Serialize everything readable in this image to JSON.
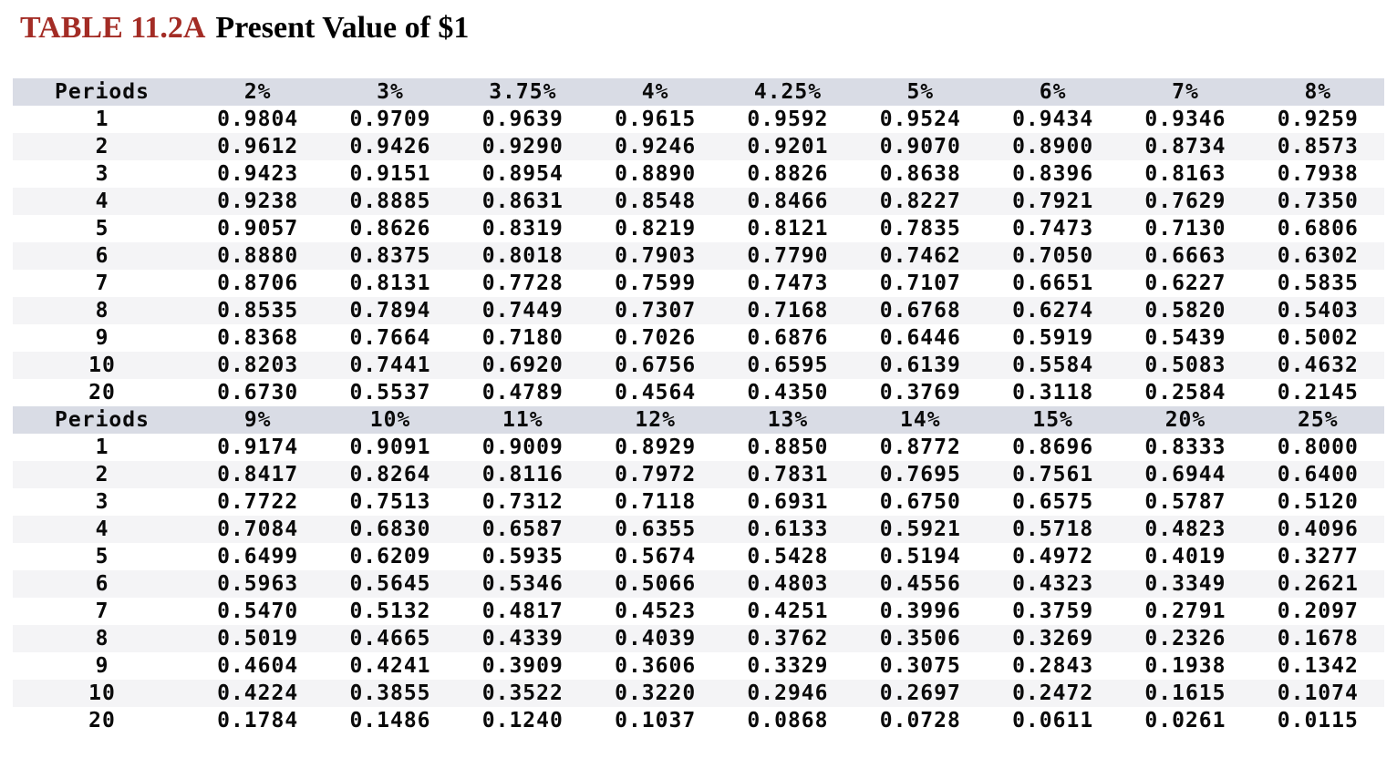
{
  "title": {
    "label": "TABLE 11.2A",
    "text": "Present Value of $1"
  },
  "colors": {
    "title_accent": "#a32c25",
    "header_band": "#d9dce5",
    "row_stripe": "#f4f4f6",
    "text": "#0a0a0a"
  },
  "table": {
    "period_header": "Periods",
    "sections": [
      {
        "rates": [
          "2%",
          "3%",
          "3.75%",
          "4%",
          "4.25%",
          "5%",
          "6%",
          "7%",
          "8%"
        ],
        "rows": [
          {
            "period": "1",
            "values": [
              "0.9804",
              "0.9709",
              "0.9639",
              "0.9615",
              "0.9592",
              "0.9524",
              "0.9434",
              "0.9346",
              "0.9259"
            ]
          },
          {
            "period": "2",
            "values": [
              "0.9612",
              "0.9426",
              "0.9290",
              "0.9246",
              "0.9201",
              "0.9070",
              "0.8900",
              "0.8734",
              "0.8573"
            ]
          },
          {
            "period": "3",
            "values": [
              "0.9423",
              "0.9151",
              "0.8954",
              "0.8890",
              "0.8826",
              "0.8638",
              "0.8396",
              "0.8163",
              "0.7938"
            ]
          },
          {
            "period": "4",
            "values": [
              "0.9238",
              "0.8885",
              "0.8631",
              "0.8548",
              "0.8466",
              "0.8227",
              "0.7921",
              "0.7629",
              "0.7350"
            ]
          },
          {
            "period": "5",
            "values": [
              "0.9057",
              "0.8626",
              "0.8319",
              "0.8219",
              "0.8121",
              "0.7835",
              "0.7473",
              "0.7130",
              "0.6806"
            ]
          },
          {
            "period": "6",
            "values": [
              "0.8880",
              "0.8375",
              "0.8018",
              "0.7903",
              "0.7790",
              "0.7462",
              "0.7050",
              "0.6663",
              "0.6302"
            ]
          },
          {
            "period": "7",
            "values": [
              "0.8706",
              "0.8131",
              "0.7728",
              "0.7599",
              "0.7473",
              "0.7107",
              "0.6651",
              "0.6227",
              "0.5835"
            ]
          },
          {
            "period": "8",
            "values": [
              "0.8535",
              "0.7894",
              "0.7449",
              "0.7307",
              "0.7168",
              "0.6768",
              "0.6274",
              "0.5820",
              "0.5403"
            ]
          },
          {
            "period": "9",
            "values": [
              "0.8368",
              "0.7664",
              "0.7180",
              "0.7026",
              "0.6876",
              "0.6446",
              "0.5919",
              "0.5439",
              "0.5002"
            ]
          },
          {
            "period": "10",
            "values": [
              "0.8203",
              "0.7441",
              "0.6920",
              "0.6756",
              "0.6595",
              "0.6139",
              "0.5584",
              "0.5083",
              "0.4632"
            ]
          },
          {
            "period": "20",
            "values": [
              "0.6730",
              "0.5537",
              "0.4789",
              "0.4564",
              "0.4350",
              "0.3769",
              "0.3118",
              "0.2584",
              "0.2145"
            ]
          }
        ]
      },
      {
        "rates": [
          "9%",
          "10%",
          "11%",
          "12%",
          "13%",
          "14%",
          "15%",
          "20%",
          "25%"
        ],
        "rows": [
          {
            "period": "1",
            "values": [
              "0.9174",
              "0.9091",
              "0.9009",
              "0.8929",
              "0.8850",
              "0.8772",
              "0.8696",
              "0.8333",
              "0.8000"
            ]
          },
          {
            "period": "2",
            "values": [
              "0.8417",
              "0.8264",
              "0.8116",
              "0.7972",
              "0.7831",
              "0.7695",
              "0.7561",
              "0.6944",
              "0.6400"
            ]
          },
          {
            "period": "3",
            "values": [
              "0.7722",
              "0.7513",
              "0.7312",
              "0.7118",
              "0.6931",
              "0.6750",
              "0.6575",
              "0.5787",
              "0.5120"
            ]
          },
          {
            "period": "4",
            "values": [
              "0.7084",
              "0.6830",
              "0.6587",
              "0.6355",
              "0.6133",
              "0.5921",
              "0.5718",
              "0.4823",
              "0.4096"
            ]
          },
          {
            "period": "5",
            "values": [
              "0.6499",
              "0.6209",
              "0.5935",
              "0.5674",
              "0.5428",
              "0.5194",
              "0.4972",
              "0.4019",
              "0.3277"
            ]
          },
          {
            "period": "6",
            "values": [
              "0.5963",
              "0.5645",
              "0.5346",
              "0.5066",
              "0.4803",
              "0.4556",
              "0.4323",
              "0.3349",
              "0.2621"
            ]
          },
          {
            "period": "7",
            "values": [
              "0.5470",
              "0.5132",
              "0.4817",
              "0.4523",
              "0.4251",
              "0.3996",
              "0.3759",
              "0.2791",
              "0.2097"
            ]
          },
          {
            "period": "8",
            "values": [
              "0.5019",
              "0.4665",
              "0.4339",
              "0.4039",
              "0.3762",
              "0.3506",
              "0.3269",
              "0.2326",
              "0.1678"
            ]
          },
          {
            "period": "9",
            "values": [
              "0.4604",
              "0.4241",
              "0.3909",
              "0.3606",
              "0.3329",
              "0.3075",
              "0.2843",
              "0.1938",
              "0.1342"
            ]
          },
          {
            "period": "10",
            "values": [
              "0.4224",
              "0.3855",
              "0.3522",
              "0.3220",
              "0.2946",
              "0.2697",
              "0.2472",
              "0.1615",
              "0.1074"
            ]
          },
          {
            "period": "20",
            "values": [
              "0.1784",
              "0.1486",
              "0.1240",
              "0.1037",
              "0.0868",
              "0.0728",
              "0.0611",
              "0.0261",
              "0.0115"
            ]
          }
        ]
      }
    ]
  }
}
